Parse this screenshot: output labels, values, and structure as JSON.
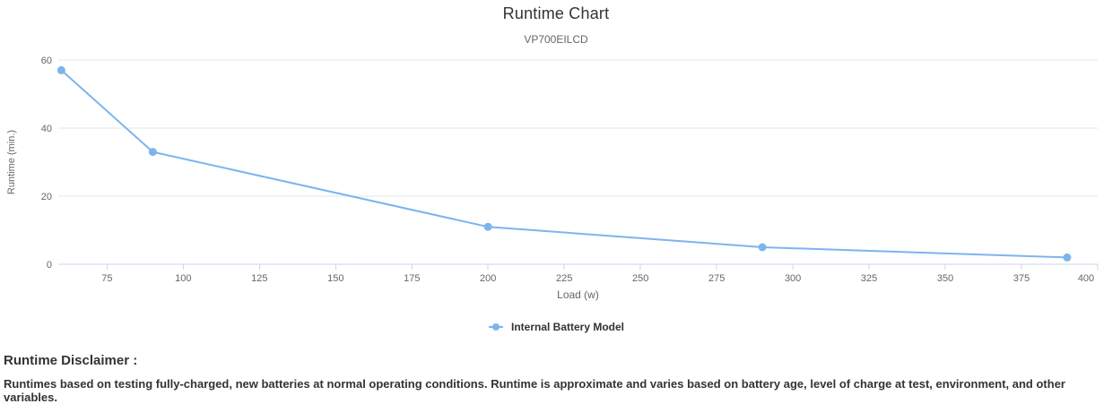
{
  "chart_data": {
    "type": "line",
    "title": "Runtime Chart",
    "subtitle": "VP700EILCD",
    "xlabel": "Load (w)",
    "ylabel": "Runtime (min.)",
    "xlim": [
      59,
      400
    ],
    "ylim": [
      0,
      60
    ],
    "x_ticks": [
      75,
      100,
      125,
      150,
      175,
      200,
      225,
      250,
      275,
      300,
      325,
      350,
      375,
      400
    ],
    "y_ticks": [
      0,
      20,
      40,
      60
    ],
    "grid": "horizontal-only",
    "legend_position": "bottom-center",
    "colors": {
      "series": "#7cb5ec",
      "gridline": "#e6e6e6",
      "axis_line": "#ccd6eb",
      "tick_label": "#666666",
      "axis_title": "#666666",
      "title": "#333333",
      "subtitle": "#666666"
    },
    "series": [
      {
        "name": "Internal Battery Model",
        "color": "#7cb5ec",
        "points": [
          {
            "x": 60,
            "y": 57
          },
          {
            "x": 90,
            "y": 33
          },
          {
            "x": 200,
            "y": 11
          },
          {
            "x": 290,
            "y": 5
          },
          {
            "x": 390,
            "y": 2
          }
        ]
      }
    ]
  },
  "legend": {
    "label": "Internal Battery Model"
  },
  "disclaimer": {
    "heading": "Runtime Disclaimer :",
    "body": "Runtimes based on testing fully-charged, new batteries at normal operating conditions. Runtime is approximate and varies based on battery age, level of charge at test, environment, and other variables."
  }
}
